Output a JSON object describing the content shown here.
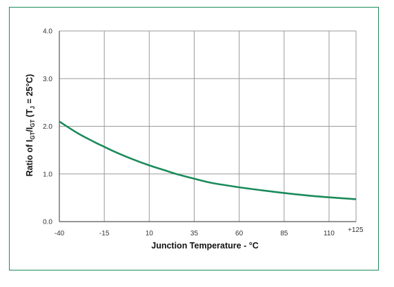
{
  "chart_data": {
    "type": "line",
    "title": "",
    "xlabel": "Junction Temperature - °C",
    "ylabel": {
      "prefix": "Ratio of  I",
      "sub1": "GT",
      "mid1": "/I",
      "sub2": "GT",
      "mid2": " (T",
      "sub3": "J",
      "suffix": " = 25°C)"
    },
    "x_ticks": [
      -40,
      -15,
      10,
      35,
      60,
      85,
      110,
      125
    ],
    "x_tick_labels": [
      "-40",
      "-15",
      "10",
      "35",
      "60",
      "85",
      "110",
      "+125"
    ],
    "y_ticks": [
      0,
      1,
      2,
      3,
      4
    ],
    "y_tick_labels": [
      "0.0",
      "1.0",
      "2.0",
      "3.0",
      "4.0"
    ],
    "xlim": [
      -40,
      125
    ],
    "ylim": [
      0,
      4
    ],
    "grid": true,
    "series": [
      {
        "color": "#1a8a5a",
        "x": [
          -40,
          -30,
          -20,
          -15,
          -10,
          0,
          10,
          20,
          25,
          35,
          45,
          60,
          70,
          85,
          100,
          110,
          125
        ],
        "y": [
          2.1,
          1.86,
          1.66,
          1.57,
          1.48,
          1.32,
          1.18,
          1.06,
          1.0,
          0.9,
          0.81,
          0.72,
          0.67,
          0.6,
          0.54,
          0.51,
          0.47
        ]
      }
    ]
  }
}
